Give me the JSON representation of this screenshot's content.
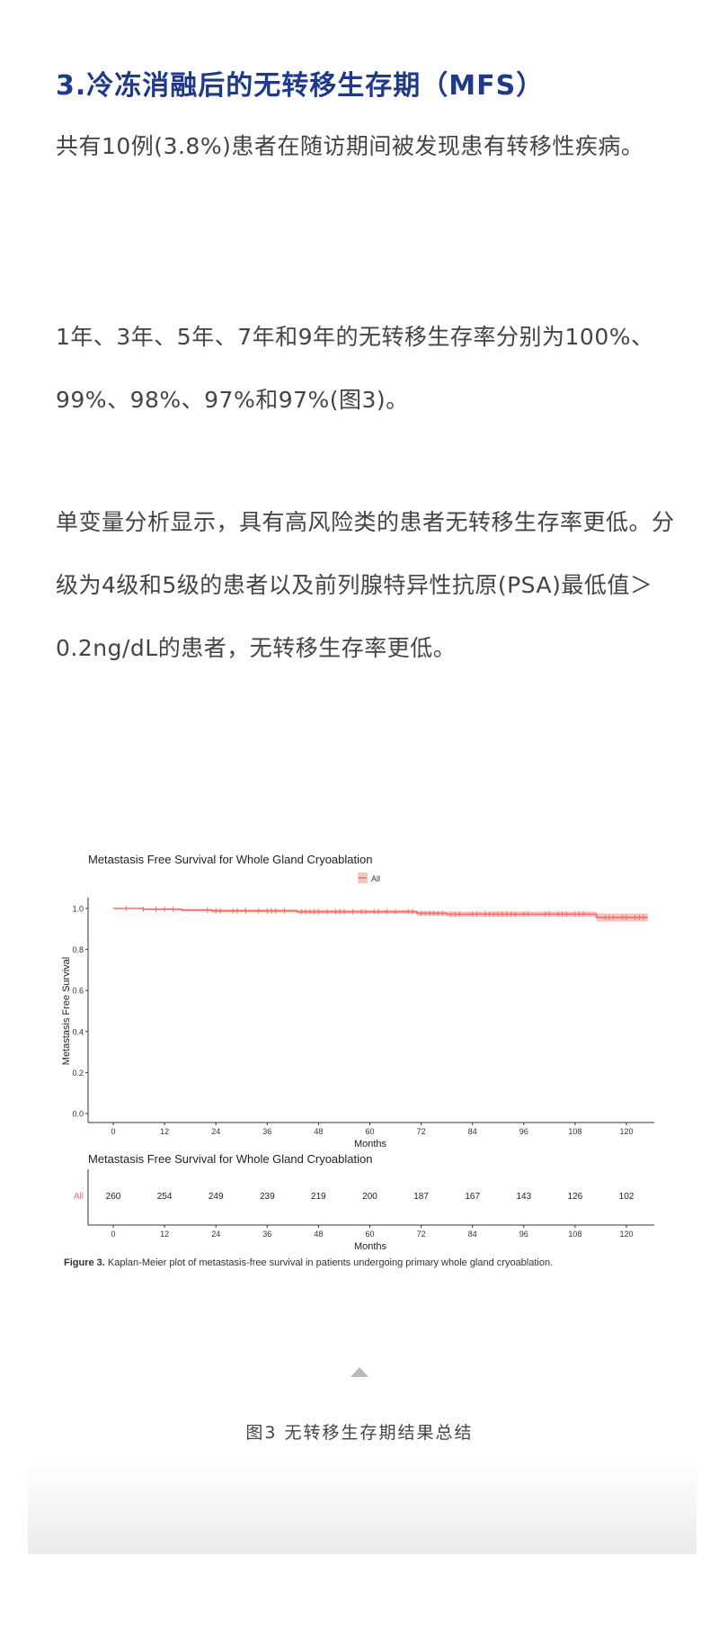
{
  "heading": "3.冷冻消融后的无转移生存期（MFS）",
  "paragraphs": [
    "共有10例(3.8%)患者在随访期间被发现患有转移性疾病。",
    "1年、3年、5年、7年和9年的无转移生存率分别为100%、99%、98%、97%和97%(图3)。",
    "单变量分析显示，具有高风险类的患者无转移生存率更低。分级为4级和5级的患者以及前列腺特异性抗原(PSA)最低值＞0.2ng/dL的患者，无转移生存率更低。"
  ],
  "chart_data": {
    "type": "line",
    "title": "Metastasis Free Survival for Whole Gland Cryoablation",
    "legend": {
      "entries": [
        "All"
      ],
      "placement": "top"
    },
    "xlabel": "Months",
    "ylabel": "Metastasis Free Survival",
    "xlim": [
      -5,
      125
    ],
    "ylim": [
      0,
      1.0
    ],
    "xticks": [
      0,
      12,
      24,
      36,
      48,
      60,
      72,
      84,
      96,
      108,
      120
    ],
    "yticks": [
      "0.0",
      "0.2",
      "0.4",
      "0.6",
      "0.8",
      "1.0"
    ],
    "grid": false,
    "color": "#f0706b",
    "series": [
      {
        "name": "All",
        "step_x": [
          0,
          7,
          16,
          23,
          43,
          71,
          78,
          113,
          125
        ],
        "step_y": [
          1.0,
          0.996,
          0.992,
          0.988,
          0.984,
          0.976,
          0.972,
          0.956,
          0.956
        ],
        "ci_halfwidth": [
          0,
          0.004,
          0.006,
          0.008,
          0.009,
          0.011,
          0.013,
          0.02,
          0.02
        ],
        "censor_x": [
          3,
          7,
          10,
          12,
          14,
          22,
          24,
          25,
          28,
          29,
          31,
          34,
          36,
          37,
          38,
          40,
          44,
          45,
          46,
          47,
          48,
          50,
          52,
          53,
          54,
          56,
          58,
          59,
          61,
          62,
          64,
          66,
          69,
          70,
          72,
          73,
          74,
          75,
          76,
          77,
          79,
          80,
          81,
          84,
          85,
          87,
          88,
          89,
          90,
          91,
          92,
          93,
          94,
          96,
          97,
          101,
          102,
          104,
          105,
          106,
          108,
          109,
          110,
          115,
          116,
          117,
          119,
          120,
          122,
          123,
          124
        ]
      }
    ],
    "risk_table": {
      "title": "Metastasis Free Survival for Whole Gland Cryoablation",
      "row_label": "All",
      "x": [
        0,
        12,
        24,
        36,
        48,
        60,
        72,
        84,
        96,
        108,
        120
      ],
      "at_risk": [
        "260",
        "254",
        "249",
        "239",
        "219",
        "200",
        "187",
        "167",
        "143",
        "126",
        "102"
      ],
      "xlabel": "Months"
    },
    "figure_caption_bold": "Figure 3.",
    "figure_caption": " Kaplan-Meier plot of metastasis-free survival in patients undergoing primary whole gland cryoablation."
  },
  "caption": "图3  无转移生存期结果总结"
}
